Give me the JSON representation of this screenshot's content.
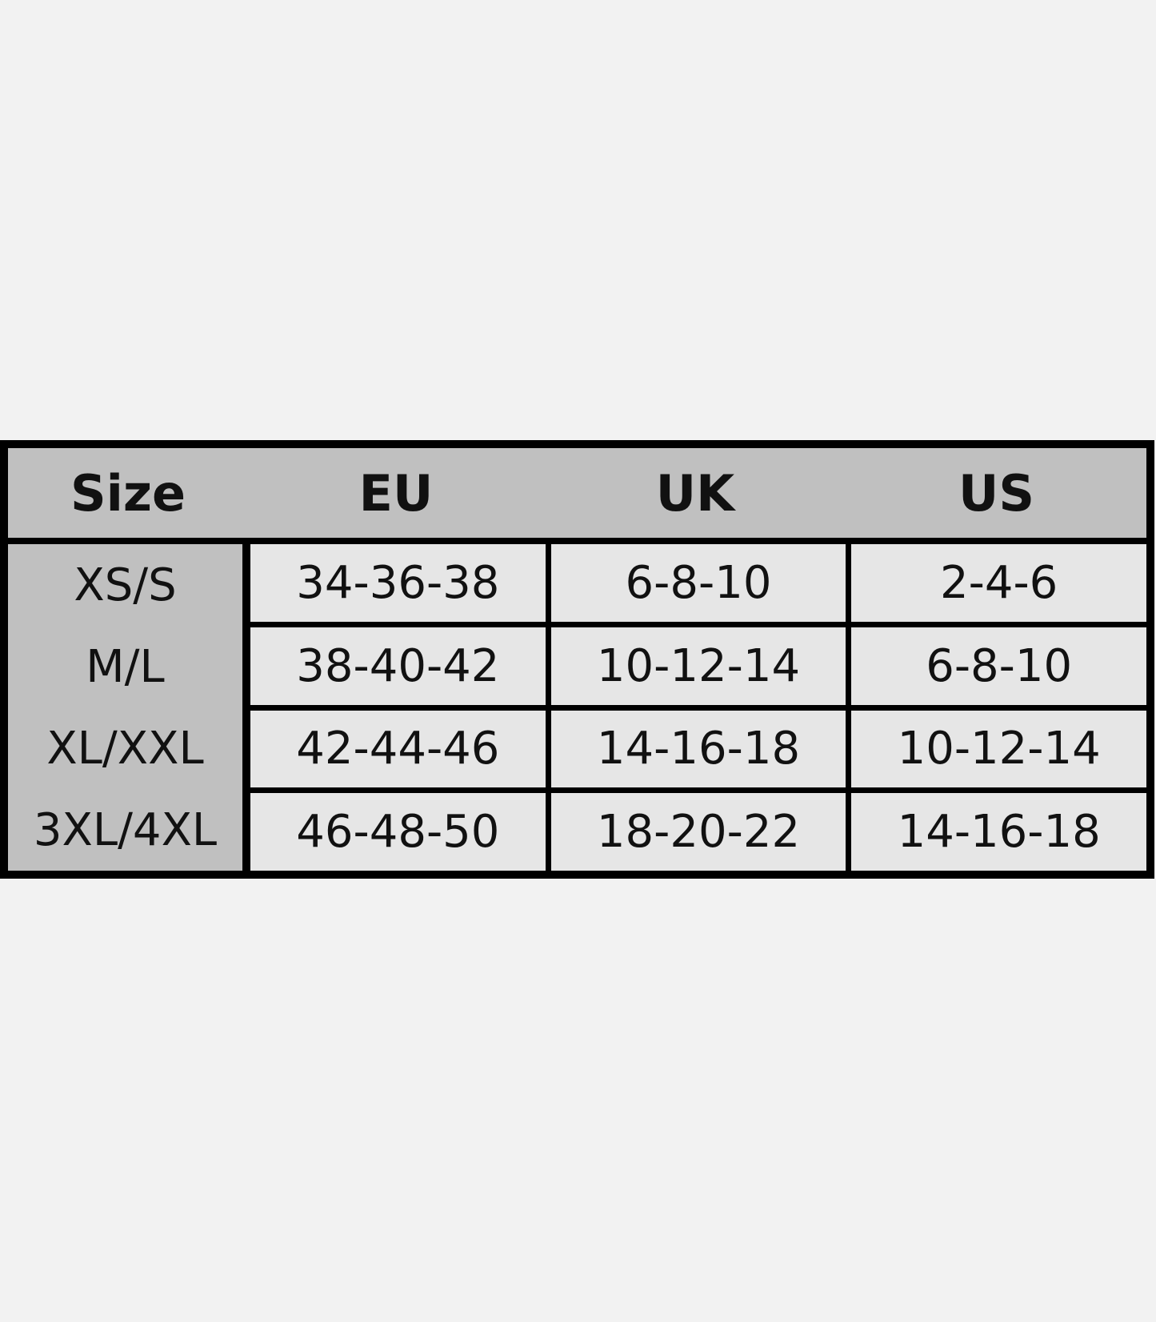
{
  "table": {
    "header": [
      "Size",
      "EU",
      "UK",
      "US"
    ],
    "rows": [
      [
        "XS/S",
        "34-36-38",
        "6-8-10",
        "2-4-6"
      ],
      [
        "M/L",
        "38-40-42",
        "10-12-14",
        "6-8-10"
      ],
      [
        "XL/XXL",
        "42-44-46",
        "14-16-18",
        "10-12-14"
      ],
      [
        "3XL/4XL",
        "46-48-50",
        "18-20-22",
        "14-16-18"
      ]
    ]
  }
}
